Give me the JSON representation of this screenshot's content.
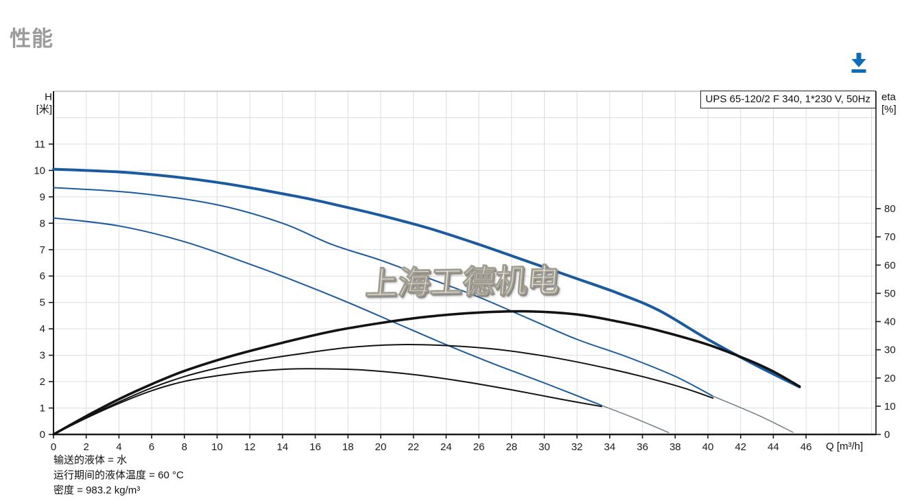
{
  "page": {
    "title": "性能",
    "title_color": "#9b9b9b"
  },
  "toolbar": {
    "download_icon_color": "#0d6db8"
  },
  "watermark_text": "上海工德机电",
  "chart_data": {
    "type": "line",
    "legend": "UPS 65-120/2 F 340, 1*230 V, 50Hz",
    "x_axis": {
      "label": "Q [m³/h]",
      "min": 0,
      "max": 50.3,
      "tick_step": 2,
      "tick_end": 46,
      "ticks": [
        0,
        2,
        4,
        6,
        8,
        10,
        12,
        14,
        16,
        18,
        20,
        22,
        24,
        26,
        28,
        30,
        32,
        34,
        36,
        38,
        40,
        42,
        44,
        46
      ]
    },
    "y_left": {
      "label_line1": "H",
      "label_line2": "[米]",
      "min": 0,
      "max": 13,
      "ticks": [
        0,
        1,
        2,
        3,
        4,
        5,
        6,
        7,
        8,
        9,
        10,
        11
      ]
    },
    "y_right": {
      "label_line1": "eta",
      "label_line2": "[%]",
      "min": 0,
      "max": 121.6,
      "ticks": [
        0,
        10,
        20,
        30,
        40,
        50,
        60,
        70,
        80
      ]
    },
    "grid": true,
    "colors": {
      "curve_blue": "#1a5a9e",
      "curve_black": "#131313",
      "extension_gray": "#6f7a85",
      "grid": "#d9dde1",
      "axis": "#1a1a1a",
      "frame_top": "#a8adb2"
    },
    "series": [
      {
        "name": "head-curve-speed-3",
        "axis": "H",
        "style": "blue-thick",
        "points": [
          [
            0,
            10.05
          ],
          [
            5,
            9.9
          ],
          [
            10,
            9.55
          ],
          [
            15,
            9.0
          ],
          [
            17.6,
            8.65
          ],
          [
            20,
            8.3
          ],
          [
            23,
            7.8
          ],
          [
            26,
            7.2
          ],
          [
            29,
            6.55
          ],
          [
            32,
            5.9
          ],
          [
            34.5,
            5.35
          ],
          [
            37,
            4.7
          ],
          [
            40,
            3.6
          ],
          [
            43,
            2.6
          ],
          [
            45.6,
            1.8
          ]
        ]
      },
      {
        "name": "head-curve-speed-2",
        "axis": "H",
        "style": "blue-thin",
        "points": [
          [
            0,
            9.35
          ],
          [
            5,
            9.15
          ],
          [
            10,
            8.7
          ],
          [
            14,
            8.0
          ],
          [
            17,
            7.2
          ],
          [
            20,
            6.6
          ],
          [
            23,
            5.9
          ],
          [
            26,
            5.2
          ],
          [
            29,
            4.4
          ],
          [
            32,
            3.6
          ],
          [
            35,
            2.95
          ],
          [
            38,
            2.2
          ],
          [
            40.3,
            1.45
          ]
        ]
      },
      {
        "name": "head-curve-speed-2-extension",
        "axis": "H",
        "style": "gray-thin",
        "points": [
          [
            40.3,
            1.45
          ],
          [
            43,
            0.75
          ],
          [
            45.2,
            0.08
          ]
        ]
      },
      {
        "name": "head-curve-speed-1",
        "axis": "H",
        "style": "blue-thin",
        "points": [
          [
            0,
            8.2
          ],
          [
            4,
            7.9
          ],
          [
            8,
            7.3
          ],
          [
            12,
            6.45
          ],
          [
            15,
            5.75
          ],
          [
            18,
            5.0
          ],
          [
            21,
            4.2
          ],
          [
            24,
            3.4
          ],
          [
            27,
            2.65
          ],
          [
            30,
            1.95
          ],
          [
            33.5,
            1.1
          ]
        ]
      },
      {
        "name": "head-curve-speed-1-extension",
        "axis": "H",
        "style": "gray-thin",
        "points": [
          [
            33.5,
            1.1
          ],
          [
            35.5,
            0.62
          ],
          [
            37.6,
            0.07
          ]
        ]
      },
      {
        "name": "eta-curve-speed-3",
        "axis": "eta",
        "style": "black-thick",
        "points": [
          [
            0,
            0
          ],
          [
            2,
            6.5
          ],
          [
            4,
            12.5
          ],
          [
            6,
            17.8
          ],
          [
            8,
            22.5
          ],
          [
            11,
            28
          ],
          [
            14,
            32.5
          ],
          [
            17,
            36.5
          ],
          [
            20,
            39.5
          ],
          [
            23,
            41.8
          ],
          [
            26,
            43.2
          ],
          [
            29,
            43.6
          ],
          [
            32,
            42.5
          ],
          [
            34.5,
            40
          ],
          [
            37,
            36.8
          ],
          [
            40,
            31.8
          ],
          [
            42.5,
            26.3
          ],
          [
            44,
            22.3
          ],
          [
            45.6,
            17
          ]
        ]
      },
      {
        "name": "eta-curve-speed-2",
        "axis": "eta",
        "style": "black-thin",
        "points": [
          [
            0,
            0
          ],
          [
            2,
            6
          ],
          [
            4,
            11.5
          ],
          [
            6,
            16.5
          ],
          [
            8,
            20.5
          ],
          [
            10,
            23.5
          ],
          [
            12,
            25.8
          ],
          [
            15,
            28.5
          ],
          [
            18,
            30.8
          ],
          [
            21,
            31.8
          ],
          [
            24,
            31.5
          ],
          [
            27,
            30.2
          ],
          [
            30,
            27.8
          ],
          [
            33,
            24.5
          ],
          [
            36,
            20.5
          ],
          [
            38.5,
            16.5
          ],
          [
            40.3,
            12.9
          ]
        ]
      },
      {
        "name": "eta-curve-speed-1",
        "axis": "eta",
        "style": "black-thin",
        "points": [
          [
            0,
            0
          ],
          [
            2,
            5.8
          ],
          [
            4,
            11
          ],
          [
            6,
            15.5
          ],
          [
            8,
            18.8
          ],
          [
            10,
            20.8
          ],
          [
            12,
            22.2
          ],
          [
            14.5,
            23.2
          ],
          [
            17,
            23.2
          ],
          [
            19,
            22.8
          ],
          [
            22,
            21.2
          ],
          [
            25,
            18.8
          ],
          [
            28,
            15.8
          ],
          [
            31,
            12.5
          ],
          [
            33.5,
            9.9
          ]
        ]
      }
    ],
    "footnotes": [
      "输送的液体 = 水",
      "运行期间的液体温度 = 60 °C",
      "密度 = 983.2 kg/m³"
    ]
  }
}
